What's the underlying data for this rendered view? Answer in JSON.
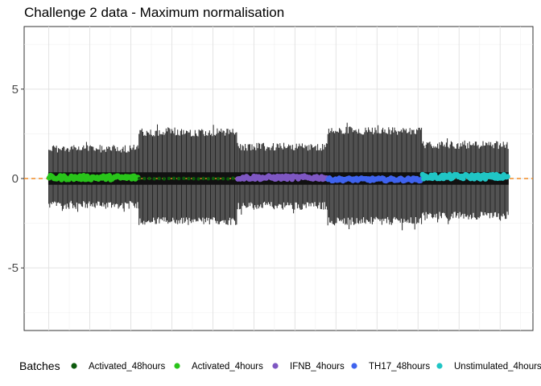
{
  "chart_data": {
    "type": "boxplot-strip",
    "title": "Challenge 2 data - Maximum normalisation",
    "xlabel": "",
    "ylabel": "",
    "ylim": [
      -8.5,
      8.5
    ],
    "yticks": [
      -5,
      0,
      5
    ],
    "xlim": [
      -60,
      1180
    ],
    "grid": true,
    "reference_line_y": 0,
    "reference_line_color": "#f08a24",
    "box_color": "#262626",
    "legend": {
      "title": "Batches",
      "position": "bottom"
    },
    "series": [
      {
        "name": "Activated_4hours",
        "color": "#29c41a",
        "x_range": [
          0,
          220
        ],
        "whisker_low": -1.7,
        "whisker_high": 1.9,
        "median_mean": 0.05,
        "median_spread": 0.12,
        "point_step": 3
      },
      {
        "name": "Activated_48hours",
        "color": "#0c5a0c",
        "x_range": [
          220,
          460
        ],
        "whisker_low": -2.6,
        "whisker_high": 2.8,
        "median_mean": 0.0,
        "median_spread": 0.02,
        "point_step": 12
      },
      {
        "name": "IFNB_4hours",
        "color": "#7e57c2",
        "x_range": [
          460,
          680
        ],
        "whisker_low": -1.75,
        "whisker_high": 2.0,
        "median_mean": 0.05,
        "median_spread": 0.1,
        "point_step": 3
      },
      {
        "name": "TH17_48hours",
        "color": "#3f63ee",
        "x_range": [
          680,
          910
        ],
        "whisker_low": -2.6,
        "whisker_high": 2.9,
        "median_mean": -0.05,
        "median_spread": 0.08,
        "point_step": 3
      },
      {
        "name": "Unstimulated_4hours",
        "color": "#20c5c5",
        "x_range": [
          910,
          1120
        ],
        "whisker_low": -2.3,
        "whisker_high": 2.1,
        "median_mean": 0.1,
        "median_spread": 0.13,
        "point_step": 3
      }
    ],
    "legend_order": [
      "Activated_48hours",
      "Activated_4hours",
      "IFNB_4hours",
      "TH17_48hours",
      "Unstimulated_4hours"
    ]
  }
}
